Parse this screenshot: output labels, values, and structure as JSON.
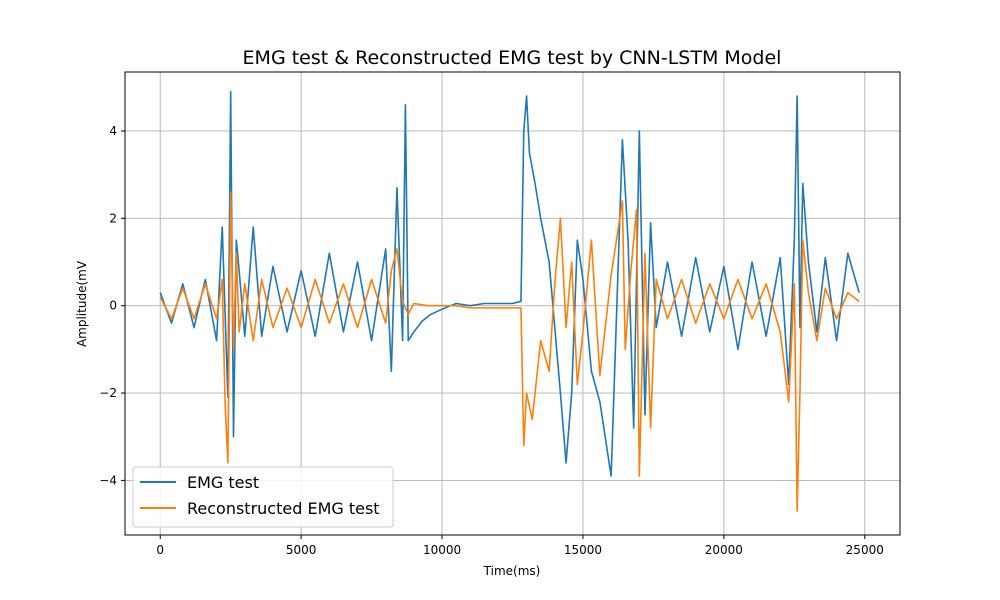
{
  "chart_data": {
    "type": "line",
    "title": "EMG test & Reconstructed EMG test by CNN-LSTM Model",
    "xlabel": "Time(ms)",
    "ylabel": "Amplitude(mV",
    "xlim": [
      -1250,
      26250
    ],
    "ylim": [
      -5.25,
      5.35
    ],
    "xticks": [
      0,
      5000,
      10000,
      15000,
      20000,
      25000
    ],
    "yticks": [
      -4,
      -2,
      0,
      2,
      4
    ],
    "grid": true,
    "legend": "lower-left",
    "series": [
      {
        "name": "EMG test",
        "color": "#1f77b4",
        "x": [
          0,
          400,
          800,
          1200,
          1600,
          2000,
          2200,
          2400,
          2500,
          2600,
          2700,
          2800,
          3000,
          3300,
          3600,
          4000,
          4500,
          5000,
          5500,
          6000,
          6500,
          7000,
          7500,
          8000,
          8200,
          8400,
          8600,
          8700,
          8800,
          9000,
          9300,
          9600,
          10000,
          10500,
          11000,
          11500,
          12000,
          12500,
          12800,
          12900,
          13000,
          13100,
          13300,
          13500,
          13800,
          14000,
          14200,
          14400,
          14600,
          14800,
          15000,
          15300,
          15600,
          16000,
          16400,
          16600,
          16800,
          17000,
          17200,
          17400,
          17600,
          18000,
          18500,
          19000,
          19500,
          20000,
          20500,
          21000,
          21500,
          22000,
          22300,
          22500,
          22600,
          22700,
          22800,
          23000,
          23300,
          23600,
          24000,
          24400,
          24800
        ],
        "values": [
          0.3,
          -0.4,
          0.5,
          -0.5,
          0.6,
          -0.8,
          1.8,
          -2.1,
          4.9,
          -3.0,
          1.5,
          0.8,
          -0.7,
          1.8,
          -0.7,
          0.9,
          -0.6,
          0.8,
          -0.7,
          1.2,
          -0.6,
          1.0,
          -0.8,
          1.3,
          -1.5,
          2.7,
          -0.8,
          4.6,
          -0.8,
          -0.6,
          -0.35,
          -0.2,
          -0.08,
          0.05,
          0.0,
          0.05,
          0.05,
          0.05,
          0.1,
          4.0,
          4.8,
          3.5,
          2.8,
          2.0,
          1.0,
          -0.5,
          -2.0,
          -3.6,
          -2.0,
          1.5,
          0.6,
          -1.5,
          -2.2,
          -3.9,
          3.8,
          1.5,
          -2.8,
          4.0,
          -2.5,
          1.9,
          -0.5,
          1.0,
          -0.7,
          1.1,
          -0.6,
          0.9,
          -1.0,
          1.0,
          -0.7,
          1.1,
          -1.8,
          1.5,
          4.8,
          -0.5,
          2.8,
          1.0,
          -0.6,
          1.1,
          -0.8,
          1.2,
          0.3
        ]
      },
      {
        "name": "Reconstructed EMG test",
        "color": "#ff7f0e",
        "x": [
          0,
          400,
          800,
          1200,
          1600,
          2000,
          2200,
          2300,
          2400,
          2500,
          2600,
          2700,
          2800,
          3000,
          3300,
          3600,
          4000,
          4500,
          5000,
          5500,
          6000,
          6500,
          7000,
          7500,
          8000,
          8200,
          8400,
          8600,
          8800,
          9000,
          9500,
          10000,
          10500,
          11000,
          11500,
          12000,
          12500,
          12800,
          12900,
          13000,
          13200,
          13500,
          13800,
          14000,
          14200,
          14400,
          14600,
          14800,
          15000,
          15300,
          15600,
          16000,
          16400,
          16500,
          16700,
          16900,
          17000,
          17200,
          17400,
          17600,
          18000,
          18500,
          19000,
          19500,
          20000,
          20500,
          21000,
          21500,
          22000,
          22300,
          22500,
          22600,
          22700,
          22800,
          23000,
          23300,
          23600,
          24000,
          24400,
          24800
        ],
        "values": [
          0.2,
          -0.3,
          0.4,
          -0.3,
          0.5,
          -0.3,
          0.6,
          -2.2,
          -3.6,
          2.6,
          -1.0,
          1.2,
          -0.6,
          0.5,
          -0.8,
          0.6,
          -0.5,
          0.4,
          -0.5,
          0.6,
          -0.4,
          0.5,
          -0.5,
          0.6,
          -0.4,
          0.8,
          1.3,
          0.1,
          -0.2,
          0.05,
          0.0,
          0.0,
          0.0,
          -0.05,
          -0.05,
          -0.05,
          -0.05,
          -0.05,
          -3.2,
          -2.0,
          -2.6,
          -0.8,
          -1.5,
          0.5,
          2.0,
          -0.5,
          1.0,
          -1.8,
          -0.6,
          1.5,
          -1.6,
          0.7,
          2.4,
          -1.0,
          0.8,
          2.2,
          -3.9,
          1.2,
          -2.8,
          0.6,
          -0.3,
          0.6,
          -0.4,
          0.5,
          -0.3,
          0.6,
          -0.3,
          0.5,
          -0.6,
          -2.2,
          0.5,
          -4.7,
          -2.0,
          1.5,
          0.3,
          -0.8,
          0.4,
          -0.3,
          0.3,
          0.1
        ]
      }
    ]
  }
}
